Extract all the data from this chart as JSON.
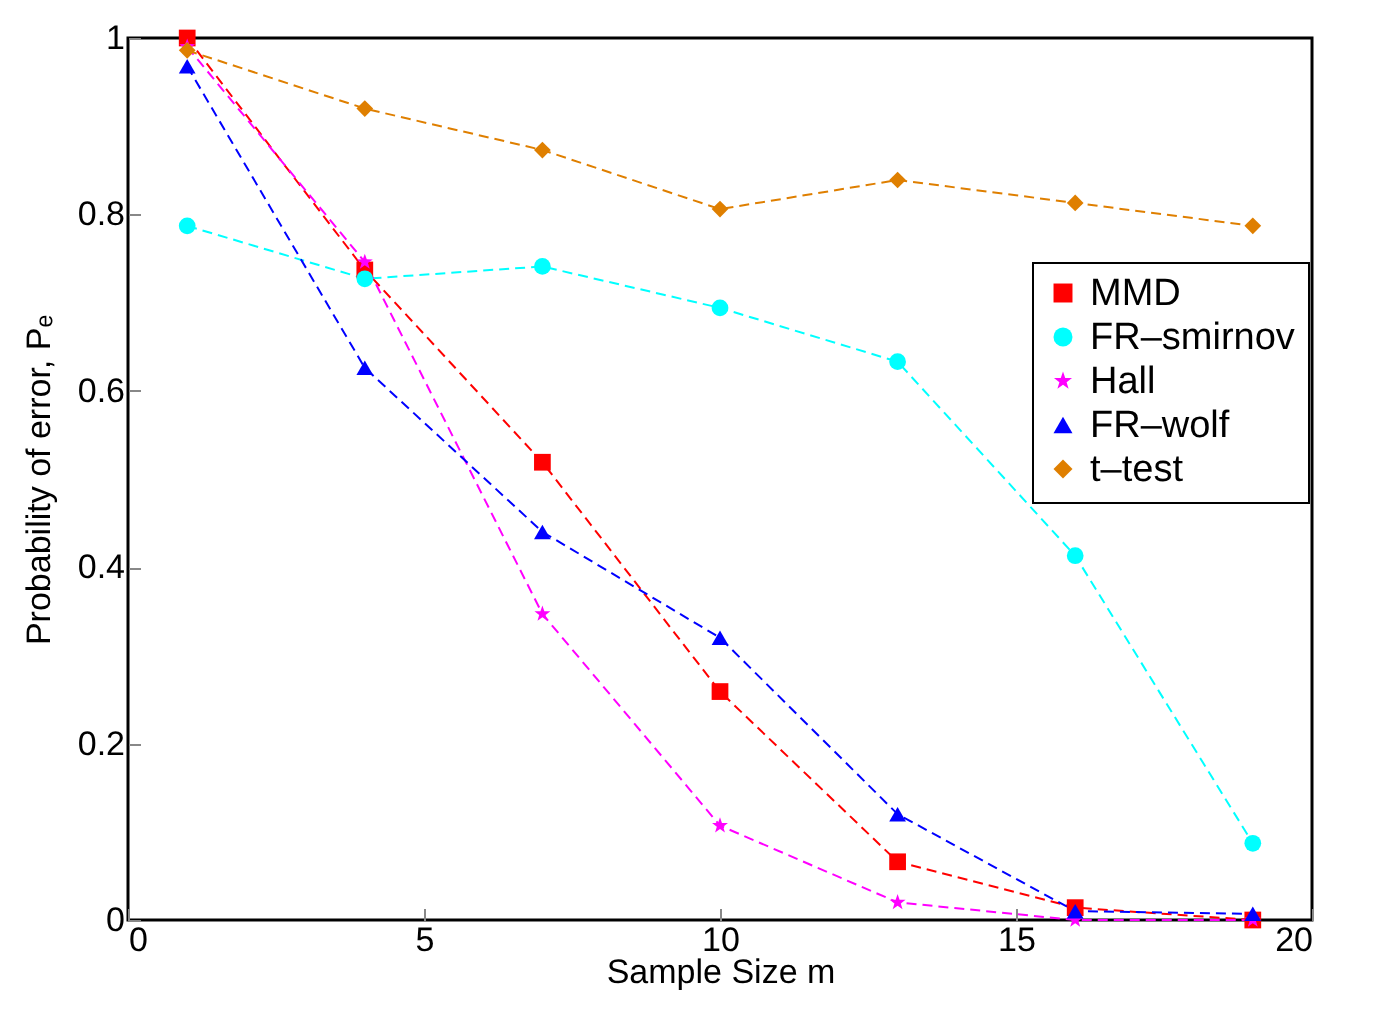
{
  "chart_data": {
    "type": "line",
    "xlabel": "Sample Size m",
    "ylabel": "Probability of error, Pₑ",
    "x": [
      1,
      4,
      7,
      10,
      13,
      16,
      19
    ],
    "series": [
      {
        "name": "MMD",
        "color": "#ff0000",
        "marker": "square",
        "values": [
          1.0,
          0.737,
          0.519,
          0.259,
          0.066,
          0.014,
          0.0
        ]
      },
      {
        "name": "FR–smirnov",
        "color": "#00ffff",
        "marker": "circle",
        "values": [
          0.787,
          0.727,
          0.741,
          0.694,
          0.633,
          0.413,
          0.087
        ]
      },
      {
        "name": "Hall",
        "color": "#ff00ff",
        "marker": "star",
        "values": [
          0.99,
          0.746,
          0.347,
          0.107,
          0.02,
          0.0,
          0.0
        ]
      },
      {
        "name": "FR–wolf",
        "color": "#0000ff",
        "marker": "triangle",
        "values": [
          0.968,
          0.626,
          0.44,
          0.32,
          0.12,
          0.01,
          0.007
        ]
      },
      {
        "name": "t–test",
        "color": "#df7f00",
        "marker": "diamond",
        "values": [
          0.986,
          0.92,
          0.873,
          0.806,
          0.839,
          0.813,
          0.787
        ]
      }
    ],
    "xlim": [
      0,
      20
    ],
    "xticks": [
      0,
      5,
      10,
      15,
      20
    ],
    "ylim": [
      0,
      1
    ],
    "yticks": [
      0,
      0.2,
      0.4,
      0.6,
      0.8,
      1
    ],
    "grid": false,
    "legend": "top right",
    "line_style": "dashed"
  }
}
